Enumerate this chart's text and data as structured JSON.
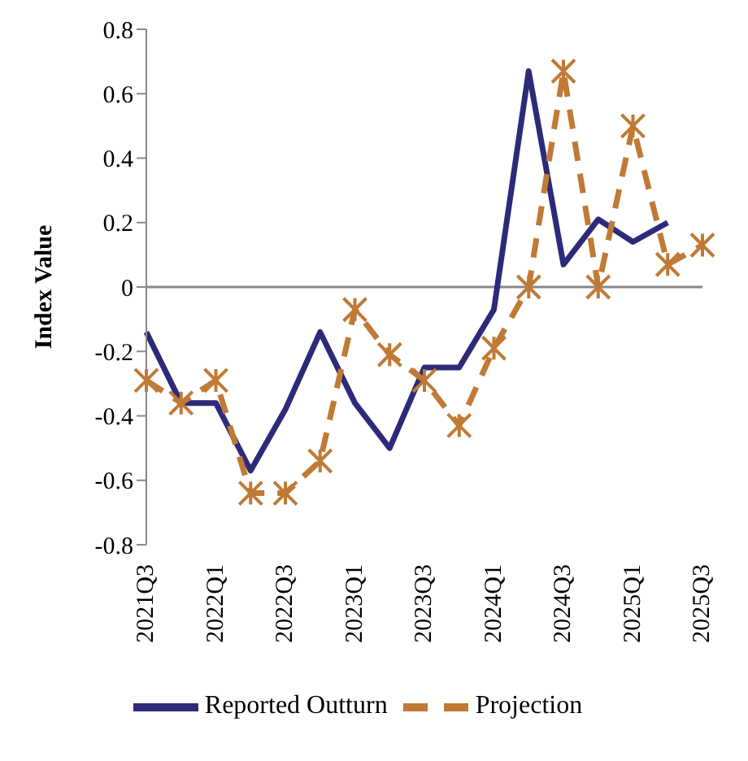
{
  "chart_data": {
    "type": "line",
    "ylabel": "Index Value",
    "categories": [
      "2021Q3",
      null,
      "2022Q1",
      null,
      "2022Q3",
      null,
      "2023Q1",
      null,
      "2023Q3",
      null,
      "2024Q1",
      null,
      "2024Q3",
      null,
      "2025Q1",
      null,
      "2025Q3"
    ],
    "series": [
      {
        "name": "Reported Outturn",
        "color": "#2e2a7a",
        "marker": "none",
        "line_style": "solid",
        "values": [
          -0.14,
          -0.36,
          -0.36,
          -0.57,
          -0.38,
          -0.14,
          -0.36,
          -0.5,
          -0.25,
          -0.25,
          -0.07,
          0.67,
          0.07,
          0.21,
          0.14,
          0.2,
          null
        ]
      },
      {
        "name": "Projection",
        "color": "#c07a35",
        "marker": "cross",
        "line_style": "dashed",
        "values": [
          -0.29,
          -0.36,
          -0.29,
          -0.64,
          -0.64,
          -0.54,
          -0.07,
          -0.21,
          -0.29,
          -0.43,
          -0.19,
          0,
          0.67,
          0,
          0.5,
          0.07,
          0.13
        ]
      }
    ],
    "ylim": [
      -0.8,
      0.8
    ],
    "yticks": [
      -0.8,
      -0.6,
      -0.4,
      -0.2,
      0,
      0.2,
      0.4,
      0.6,
      0.8
    ],
    "ref_lines": [
      {
        "axis": "y",
        "value": 0,
        "color": "#888888"
      }
    ],
    "legend": "bottom"
  }
}
